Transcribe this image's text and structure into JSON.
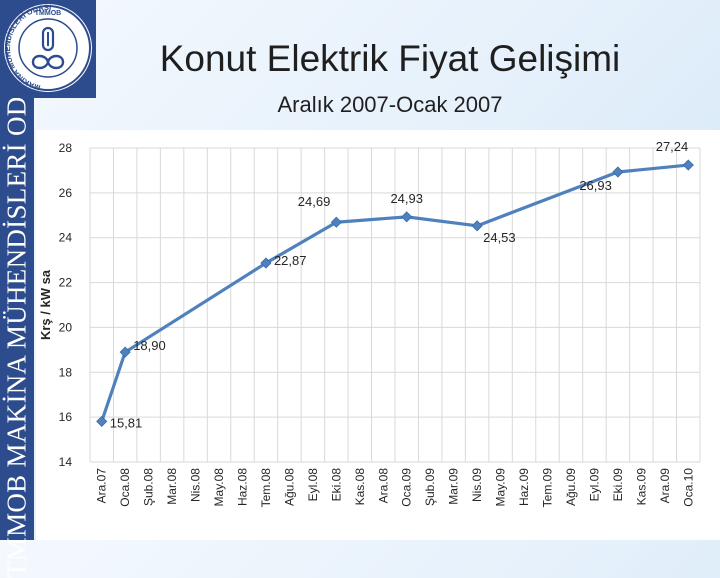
{
  "logo": {
    "ring_text": "MAKİNA MÜHENDİSLERİ ODASI",
    "top_text": "TMMOB"
  },
  "sidebar": {
    "text": "TMMOB MAKİNA MÜHENDİSLERİ ODASI"
  },
  "slide": {
    "title": "Konut Elektrik Fiyat Gelişimi",
    "subtitle": "Aralık 2007-Ocak 2007"
  },
  "colors": {
    "sidebar": "#2d4c8e",
    "line": "#4f81bd",
    "grid": "#d9d9d9"
  },
  "chart_data": {
    "type": "line",
    "ylabel": "Krş / kW sa",
    "ylim": [
      14,
      28
    ],
    "yticks": [
      14,
      16,
      18,
      20,
      22,
      24,
      26,
      28
    ],
    "grid": true,
    "categories": [
      "Ara.07",
      "Oca.08",
      "Şub.08",
      "Mar.08",
      "Nis.08",
      "May.08",
      "Haz.08",
      "Tem.08",
      "Ağu.08",
      "Eyl.08",
      "Eki.08",
      "Kas.08",
      "Ara.08",
      "Oca.09",
      "Şub.09",
      "Mar.09",
      "Nis.09",
      "May.09",
      "Haz.09",
      "Tem.09",
      "Ağu.09",
      "Eyl.09",
      "Eki.09",
      "Kas.09",
      "Ara.09",
      "Oca.10"
    ],
    "points": [
      {
        "category": "Ara.07",
        "value": 15.81,
        "label": "15,81"
      },
      {
        "category": "Oca.08",
        "value": 18.9,
        "label": "18,90"
      },
      {
        "category": "Tem.08",
        "value": 22.87,
        "label": "22,87"
      },
      {
        "category": "Eki.08",
        "value": 24.69,
        "label": "24,69"
      },
      {
        "category": "Oca.09",
        "value": 24.93,
        "label": "24,93"
      },
      {
        "category": "Nis.09",
        "value": 24.53,
        "label": "24,53"
      },
      {
        "category": "Eki.09",
        "value": 26.93,
        "label": "26,93"
      },
      {
        "category": "Oca.10",
        "value": 27.24,
        "label": "27,24"
      }
    ]
  }
}
